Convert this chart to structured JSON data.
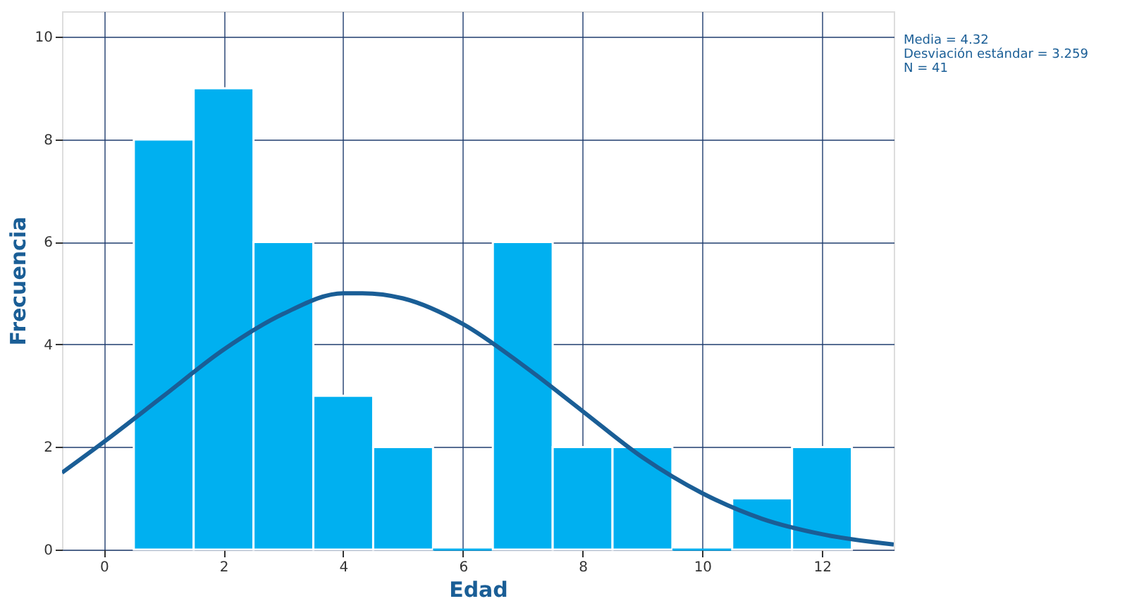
{
  "chart_data": {
    "type": "histogram",
    "xlabel": "Edad",
    "ylabel": "Frecuencia",
    "bins": [
      0.5,
      1.5,
      2.5,
      3.5,
      4.5,
      5.5,
      6.5,
      7.5,
      8.5,
      9.5,
      10.5,
      11.5,
      12.5
    ],
    "values": [
      8,
      9,
      6,
      3,
      2,
      0,
      6,
      2,
      2,
      0,
      1,
      2
    ],
    "color": "#00b0f0",
    "series": [
      {
        "type": "line",
        "color": "#1a5e96",
        "x": [
          -0.7,
          0,
          1,
          2,
          3,
          4,
          4.32,
          5,
          6,
          7,
          8,
          9,
          10,
          11,
          12,
          13.2
        ],
        "values": [
          1.5,
          2.1,
          3.0,
          3.9,
          4.6,
          5.0,
          5.0,
          4.9,
          4.4,
          3.6,
          2.7,
          1.8,
          1.1,
          0.6,
          0.3,
          0.1
        ]
      }
    ],
    "xlim": [
      -0.7,
      13.2
    ],
    "xticks": [
      0,
      2,
      4,
      6,
      8,
      10,
      12
    ],
    "ylim": [
      0,
      10.5
    ],
    "yticks": [
      0,
      2,
      4,
      6,
      8,
      10
    ],
    "grid": true,
    "legend": false,
    "annotations": [
      "Media = 4.32",
      "Desviación estándar = 3.259",
      "N = 41"
    ]
  }
}
